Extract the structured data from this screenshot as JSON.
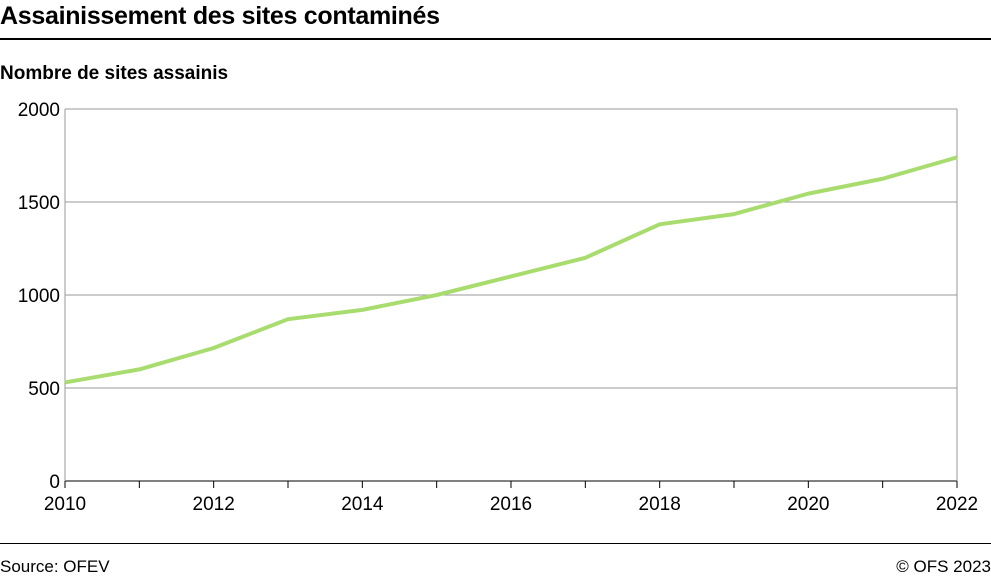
{
  "title": "Assainissement des sites contaminés",
  "source": "Source: OFEV",
  "copyright": "© OFS 2023",
  "chart_data": {
    "type": "line",
    "title": "Assainissement des sites contaminés",
    "ylabel": "Nombre de sites assainis",
    "xlabel": "",
    "x": [
      2010,
      2011,
      2012,
      2013,
      2014,
      2015,
      2016,
      2017,
      2018,
      2019,
      2020,
      2021,
      2022
    ],
    "series": [
      {
        "values": [
          530,
          600,
          715,
          870,
          920,
          1000,
          1100,
          1200,
          1380,
          1435,
          1545,
          1625,
          1740
        ],
        "color": "#a9dc6e"
      }
    ],
    "xlim": [
      2010,
      2022
    ],
    "ylim": [
      0,
      2000
    ],
    "xticks": [
      "2010",
      "2012",
      "2014",
      "2016",
      "2018",
      "2020",
      "2022"
    ],
    "yticks": [
      "0",
      "500",
      "1000",
      "1500",
      "2000"
    ],
    "grid": "horizontal",
    "legend": "none"
  }
}
